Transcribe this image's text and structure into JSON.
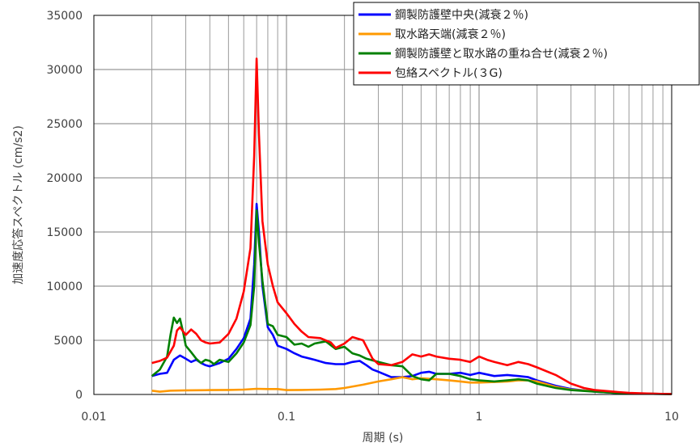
{
  "chart_data": {
    "type": "line",
    "xlabel": "周期 (s)",
    "ylabel": "加速度応答スペクトル (cm/s2)",
    "xscale": "log",
    "xlim": [
      0.01,
      10
    ],
    "ylim": [
      0,
      35000
    ],
    "x_ticks": [
      0.01,
      0.1,
      1,
      10
    ],
    "x_tick_labels": [
      "0.01",
      "0.1",
      "1",
      "10"
    ],
    "y_ticks": [
      0,
      5000,
      10000,
      15000,
      20000,
      25000,
      30000,
      35000
    ],
    "y_tick_labels": [
      "0",
      "5000",
      "10000",
      "15000",
      "20000",
      "25000",
      "30000",
      "35000"
    ],
    "grid": true,
    "legend_position": "top-right",
    "series": [
      {
        "name": "鋼製防護壁中央(減衰２％)",
        "color": "#0000ff",
        "points": [
          [
            0.02,
            1700
          ],
          [
            0.022,
            1900
          ],
          [
            0.024,
            2000
          ],
          [
            0.026,
            3200
          ],
          [
            0.028,
            3600
          ],
          [
            0.03,
            3300
          ],
          [
            0.032,
            3000
          ],
          [
            0.034,
            3200
          ],
          [
            0.036,
            2900
          ],
          [
            0.038,
            2700
          ],
          [
            0.04,
            2600
          ],
          [
            0.045,
            2900
          ],
          [
            0.05,
            3300
          ],
          [
            0.055,
            4200
          ],
          [
            0.06,
            5200
          ],
          [
            0.065,
            7000
          ],
          [
            0.068,
            12000
          ],
          [
            0.07,
            17600
          ],
          [
            0.072,
            15000
          ],
          [
            0.075,
            10000
          ],
          [
            0.08,
            6200
          ],
          [
            0.085,
            5500
          ],
          [
            0.09,
            4500
          ],
          [
            0.1,
            4200
          ],
          [
            0.11,
            3800
          ],
          [
            0.12,
            3500
          ],
          [
            0.14,
            3200
          ],
          [
            0.16,
            2900
          ],
          [
            0.18,
            2800
          ],
          [
            0.2,
            2800
          ],
          [
            0.22,
            3000
          ],
          [
            0.24,
            3100
          ],
          [
            0.26,
            2700
          ],
          [
            0.28,
            2300
          ],
          [
            0.3,
            2100
          ],
          [
            0.35,
            1600
          ],
          [
            0.4,
            1600
          ],
          [
            0.45,
            1700
          ],
          [
            0.5,
            2000
          ],
          [
            0.55,
            2100
          ],
          [
            0.6,
            1900
          ],
          [
            0.7,
            1900
          ],
          [
            0.8,
            2000
          ],
          [
            0.9,
            1800
          ],
          [
            1.0,
            2000
          ],
          [
            1.2,
            1700
          ],
          [
            1.4,
            1800
          ],
          [
            1.6,
            1700
          ],
          [
            1.8,
            1600
          ],
          [
            2.0,
            1300
          ],
          [
            2.5,
            800
          ],
          [
            3.0,
            500
          ],
          [
            4.0,
            250
          ],
          [
            5.0,
            150
          ],
          [
            6.0,
            100
          ],
          [
            8.0,
            60
          ],
          [
            10.0,
            40
          ]
        ]
      },
      {
        "name": "取水路天端(減衰２％)",
        "color": "#ff9900",
        "points": [
          [
            0.02,
            350
          ],
          [
            0.022,
            250
          ],
          [
            0.025,
            350
          ],
          [
            0.03,
            380
          ],
          [
            0.04,
            400
          ],
          [
            0.05,
            420
          ],
          [
            0.06,
            450
          ],
          [
            0.07,
            520
          ],
          [
            0.08,
            500
          ],
          [
            0.09,
            500
          ],
          [
            0.1,
            400
          ],
          [
            0.12,
            420
          ],
          [
            0.15,
            450
          ],
          [
            0.18,
            500
          ],
          [
            0.2,
            600
          ],
          [
            0.25,
            900
          ],
          [
            0.3,
            1200
          ],
          [
            0.35,
            1400
          ],
          [
            0.4,
            1600
          ],
          [
            0.45,
            1400
          ],
          [
            0.5,
            1500
          ],
          [
            0.6,
            1400
          ],
          [
            0.7,
            1300
          ],
          [
            0.8,
            1200
          ],
          [
            0.9,
            1100
          ],
          [
            1.0,
            1100
          ],
          [
            1.2,
            1150
          ],
          [
            1.4,
            1200
          ],
          [
            1.6,
            1300
          ],
          [
            1.8,
            1300
          ],
          [
            2.0,
            1200
          ],
          [
            2.5,
            700
          ],
          [
            3.0,
            450
          ],
          [
            4.0,
            280
          ],
          [
            5.0,
            180
          ],
          [
            6.0,
            110
          ],
          [
            8.0,
            60
          ],
          [
            10.0,
            40
          ]
        ]
      },
      {
        "name": "鋼製防護壁と取水路の重ね合せ(減衰２％)",
        "color": "#008000",
        "points": [
          [
            0.02,
            1700
          ],
          [
            0.022,
            2300
          ],
          [
            0.024,
            3500
          ],
          [
            0.025,
            5500
          ],
          [
            0.026,
            7100
          ],
          [
            0.027,
            6600
          ],
          [
            0.028,
            7000
          ],
          [
            0.029,
            5800
          ],
          [
            0.03,
            4500
          ],
          [
            0.032,
            3900
          ],
          [
            0.034,
            3300
          ],
          [
            0.036,
            2900
          ],
          [
            0.038,
            3200
          ],
          [
            0.04,
            3100
          ],
          [
            0.042,
            2800
          ],
          [
            0.045,
            3200
          ],
          [
            0.05,
            3000
          ],
          [
            0.055,
            3800
          ],
          [
            0.06,
            4800
          ],
          [
            0.065,
            6400
          ],
          [
            0.068,
            10000
          ],
          [
            0.07,
            17000
          ],
          [
            0.072,
            14000
          ],
          [
            0.075,
            10500
          ],
          [
            0.08,
            6500
          ],
          [
            0.085,
            6300
          ],
          [
            0.09,
            5500
          ],
          [
            0.1,
            5300
          ],
          [
            0.11,
            4600
          ],
          [
            0.12,
            4700
          ],
          [
            0.13,
            4400
          ],
          [
            0.14,
            4700
          ],
          [
            0.16,
            4900
          ],
          [
            0.18,
            4200
          ],
          [
            0.2,
            4400
          ],
          [
            0.22,
            3800
          ],
          [
            0.24,
            3600
          ],
          [
            0.26,
            3300
          ],
          [
            0.3,
            3000
          ],
          [
            0.35,
            2700
          ],
          [
            0.4,
            2600
          ],
          [
            0.45,
            1700
          ],
          [
            0.5,
            1400
          ],
          [
            0.55,
            1300
          ],
          [
            0.6,
            1900
          ],
          [
            0.7,
            1900
          ],
          [
            0.8,
            1700
          ],
          [
            0.9,
            1400
          ],
          [
            1.0,
            1300
          ],
          [
            1.2,
            1200
          ],
          [
            1.4,
            1300
          ],
          [
            1.6,
            1400
          ],
          [
            1.8,
            1300
          ],
          [
            2.0,
            1000
          ],
          [
            2.5,
            600
          ],
          [
            3.0,
            400
          ],
          [
            4.0,
            250
          ],
          [
            5.0,
            150
          ],
          [
            6.0,
            100
          ],
          [
            8.0,
            60
          ],
          [
            10.0,
            40
          ]
        ]
      },
      {
        "name": "包絡スペクトル(３G)",
        "color": "#ff0000",
        "points": [
          [
            0.02,
            2900
          ],
          [
            0.022,
            3100
          ],
          [
            0.024,
            3400
          ],
          [
            0.026,
            4500
          ],
          [
            0.027,
            5900
          ],
          [
            0.028,
            6200
          ],
          [
            0.03,
            5500
          ],
          [
            0.032,
            6000
          ],
          [
            0.034,
            5600
          ],
          [
            0.036,
            5000
          ],
          [
            0.038,
            4800
          ],
          [
            0.04,
            4700
          ],
          [
            0.045,
            4800
          ],
          [
            0.05,
            5600
          ],
          [
            0.055,
            7000
          ],
          [
            0.06,
            9500
          ],
          [
            0.065,
            13500
          ],
          [
            0.068,
            22000
          ],
          [
            0.07,
            31000
          ],
          [
            0.072,
            24000
          ],
          [
            0.075,
            16000
          ],
          [
            0.08,
            12000
          ],
          [
            0.085,
            10000
          ],
          [
            0.09,
            8500
          ],
          [
            0.1,
            7500
          ],
          [
            0.11,
            6500
          ],
          [
            0.12,
            5800
          ],
          [
            0.13,
            5300
          ],
          [
            0.15,
            5200
          ],
          [
            0.17,
            4800
          ],
          [
            0.18,
            4300
          ],
          [
            0.2,
            4700
          ],
          [
            0.22,
            5300
          ],
          [
            0.25,
            5000
          ],
          [
            0.28,
            3300
          ],
          [
            0.3,
            2800
          ],
          [
            0.35,
            2700
          ],
          [
            0.4,
            3000
          ],
          [
            0.45,
            3700
          ],
          [
            0.5,
            3500
          ],
          [
            0.55,
            3700
          ],
          [
            0.6,
            3500
          ],
          [
            0.7,
            3300
          ],
          [
            0.8,
            3200
          ],
          [
            0.9,
            3000
          ],
          [
            1.0,
            3500
          ],
          [
            1.1,
            3200
          ],
          [
            1.2,
            3000
          ],
          [
            1.4,
            2700
          ],
          [
            1.6,
            3000
          ],
          [
            1.8,
            2800
          ],
          [
            2.0,
            2500
          ],
          [
            2.5,
            1800
          ],
          [
            3.0,
            1000
          ],
          [
            3.5,
            600
          ],
          [
            4.0,
            400
          ],
          [
            5.0,
            250
          ],
          [
            6.0,
            150
          ],
          [
            8.0,
            70
          ],
          [
            10.0,
            40
          ]
        ]
      }
    ]
  }
}
